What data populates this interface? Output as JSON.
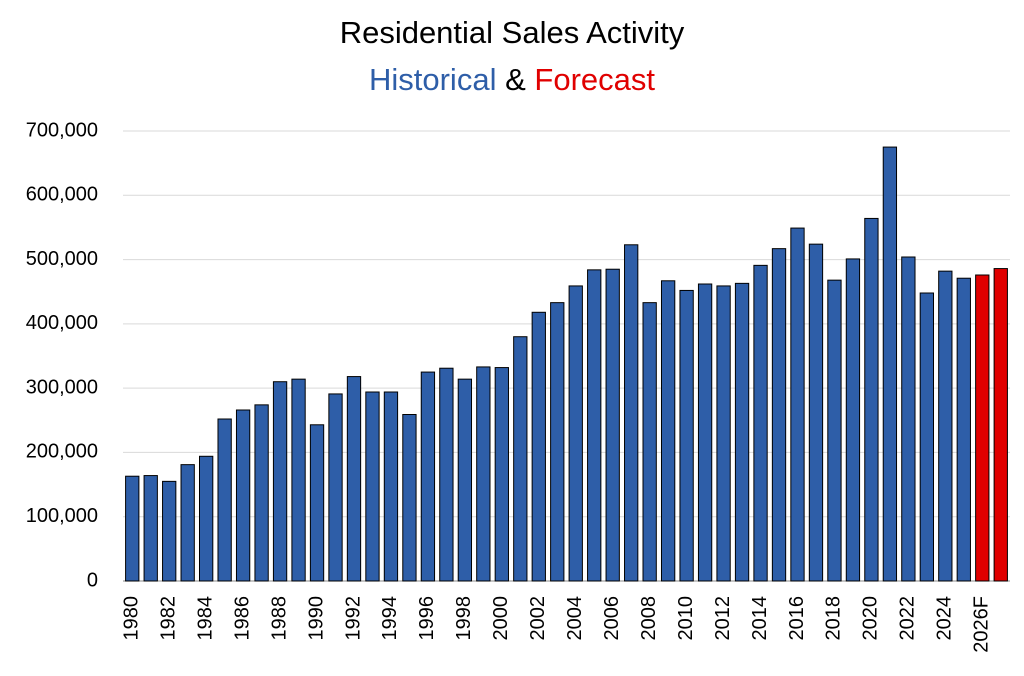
{
  "chart_data": {
    "type": "bar",
    "title": "Residential Sales Activity",
    "subtitle": [
      {
        "text": "Historical",
        "color": "#2e5ea8"
      },
      {
        "text": "&",
        "color": "#000000"
      },
      {
        "text": "Forecast",
        "color": "#e00000"
      }
    ],
    "categories": [
      "1980",
      null,
      "1982",
      null,
      "1984",
      null,
      "1986",
      null,
      "1988",
      null,
      "1990",
      null,
      "1992",
      null,
      "1994",
      null,
      "1996",
      null,
      "1998",
      null,
      "2000",
      null,
      "2002",
      null,
      "2004",
      null,
      "2006",
      null,
      "2008",
      null,
      "2010",
      null,
      "2012",
      null,
      "2014",
      null,
      "2016",
      null,
      "2018",
      null,
      "2020",
      null,
      "2022",
      null,
      "2024",
      null,
      "2026F",
      null
    ],
    "values": [
      163000,
      164000,
      155000,
      181000,
      194000,
      252000,
      266000,
      274000,
      310000,
      314000,
      243000,
      291000,
      318000,
      294000,
      294000,
      259000,
      325000,
      331000,
      314000,
      333000,
      332000,
      380000,
      418000,
      433000,
      459000,
      484000,
      485000,
      523000,
      433000,
      467000,
      452000,
      462000,
      459000,
      463000,
      491000,
      517000,
      549000,
      524000,
      468000,
      501000,
      564000,
      675000,
      504000,
      448000,
      482000,
      471000,
      476000,
      486000
    ],
    "colors": [
      "#2e5ea8",
      "#2e5ea8",
      "#2e5ea8",
      "#2e5ea8",
      "#2e5ea8",
      "#2e5ea8",
      "#2e5ea8",
      "#2e5ea8",
      "#2e5ea8",
      "#2e5ea8",
      "#2e5ea8",
      "#2e5ea8",
      "#2e5ea8",
      "#2e5ea8",
      "#2e5ea8",
      "#2e5ea8",
      "#2e5ea8",
      "#2e5ea8",
      "#2e5ea8",
      "#2e5ea8",
      "#2e5ea8",
      "#2e5ea8",
      "#2e5ea8",
      "#2e5ea8",
      "#2e5ea8",
      "#2e5ea8",
      "#2e5ea8",
      "#2e5ea8",
      "#2e5ea8",
      "#2e5ea8",
      "#2e5ea8",
      "#2e5ea8",
      "#2e5ea8",
      "#2e5ea8",
      "#2e5ea8",
      "#2e5ea8",
      "#2e5ea8",
      "#2e5ea8",
      "#2e5ea8",
      "#2e5ea8",
      "#2e5ea8",
      "#2e5ea8",
      "#2e5ea8",
      "#2e5ea8",
      "#2e5ea8",
      "#2e5ea8",
      "#e00000",
      "#e00000"
    ],
    "ylim": [
      0,
      700000
    ],
    "yticks": [
      0,
      {
        "value": 100000,
        "label": "100,000"
      },
      {
        "value": 200000,
        "label": "200,000"
      },
      {
        "value": 300000,
        "label": "300,000"
      },
      {
        "value": 400000,
        "label": "400,000"
      },
      {
        "value": 500000,
        "label": "500,000"
      },
      {
        "value": 600000,
        "label": "600,000"
      },
      {
        "value": 700000,
        "label": "700,000"
      }
    ],
    "grid": true
  }
}
